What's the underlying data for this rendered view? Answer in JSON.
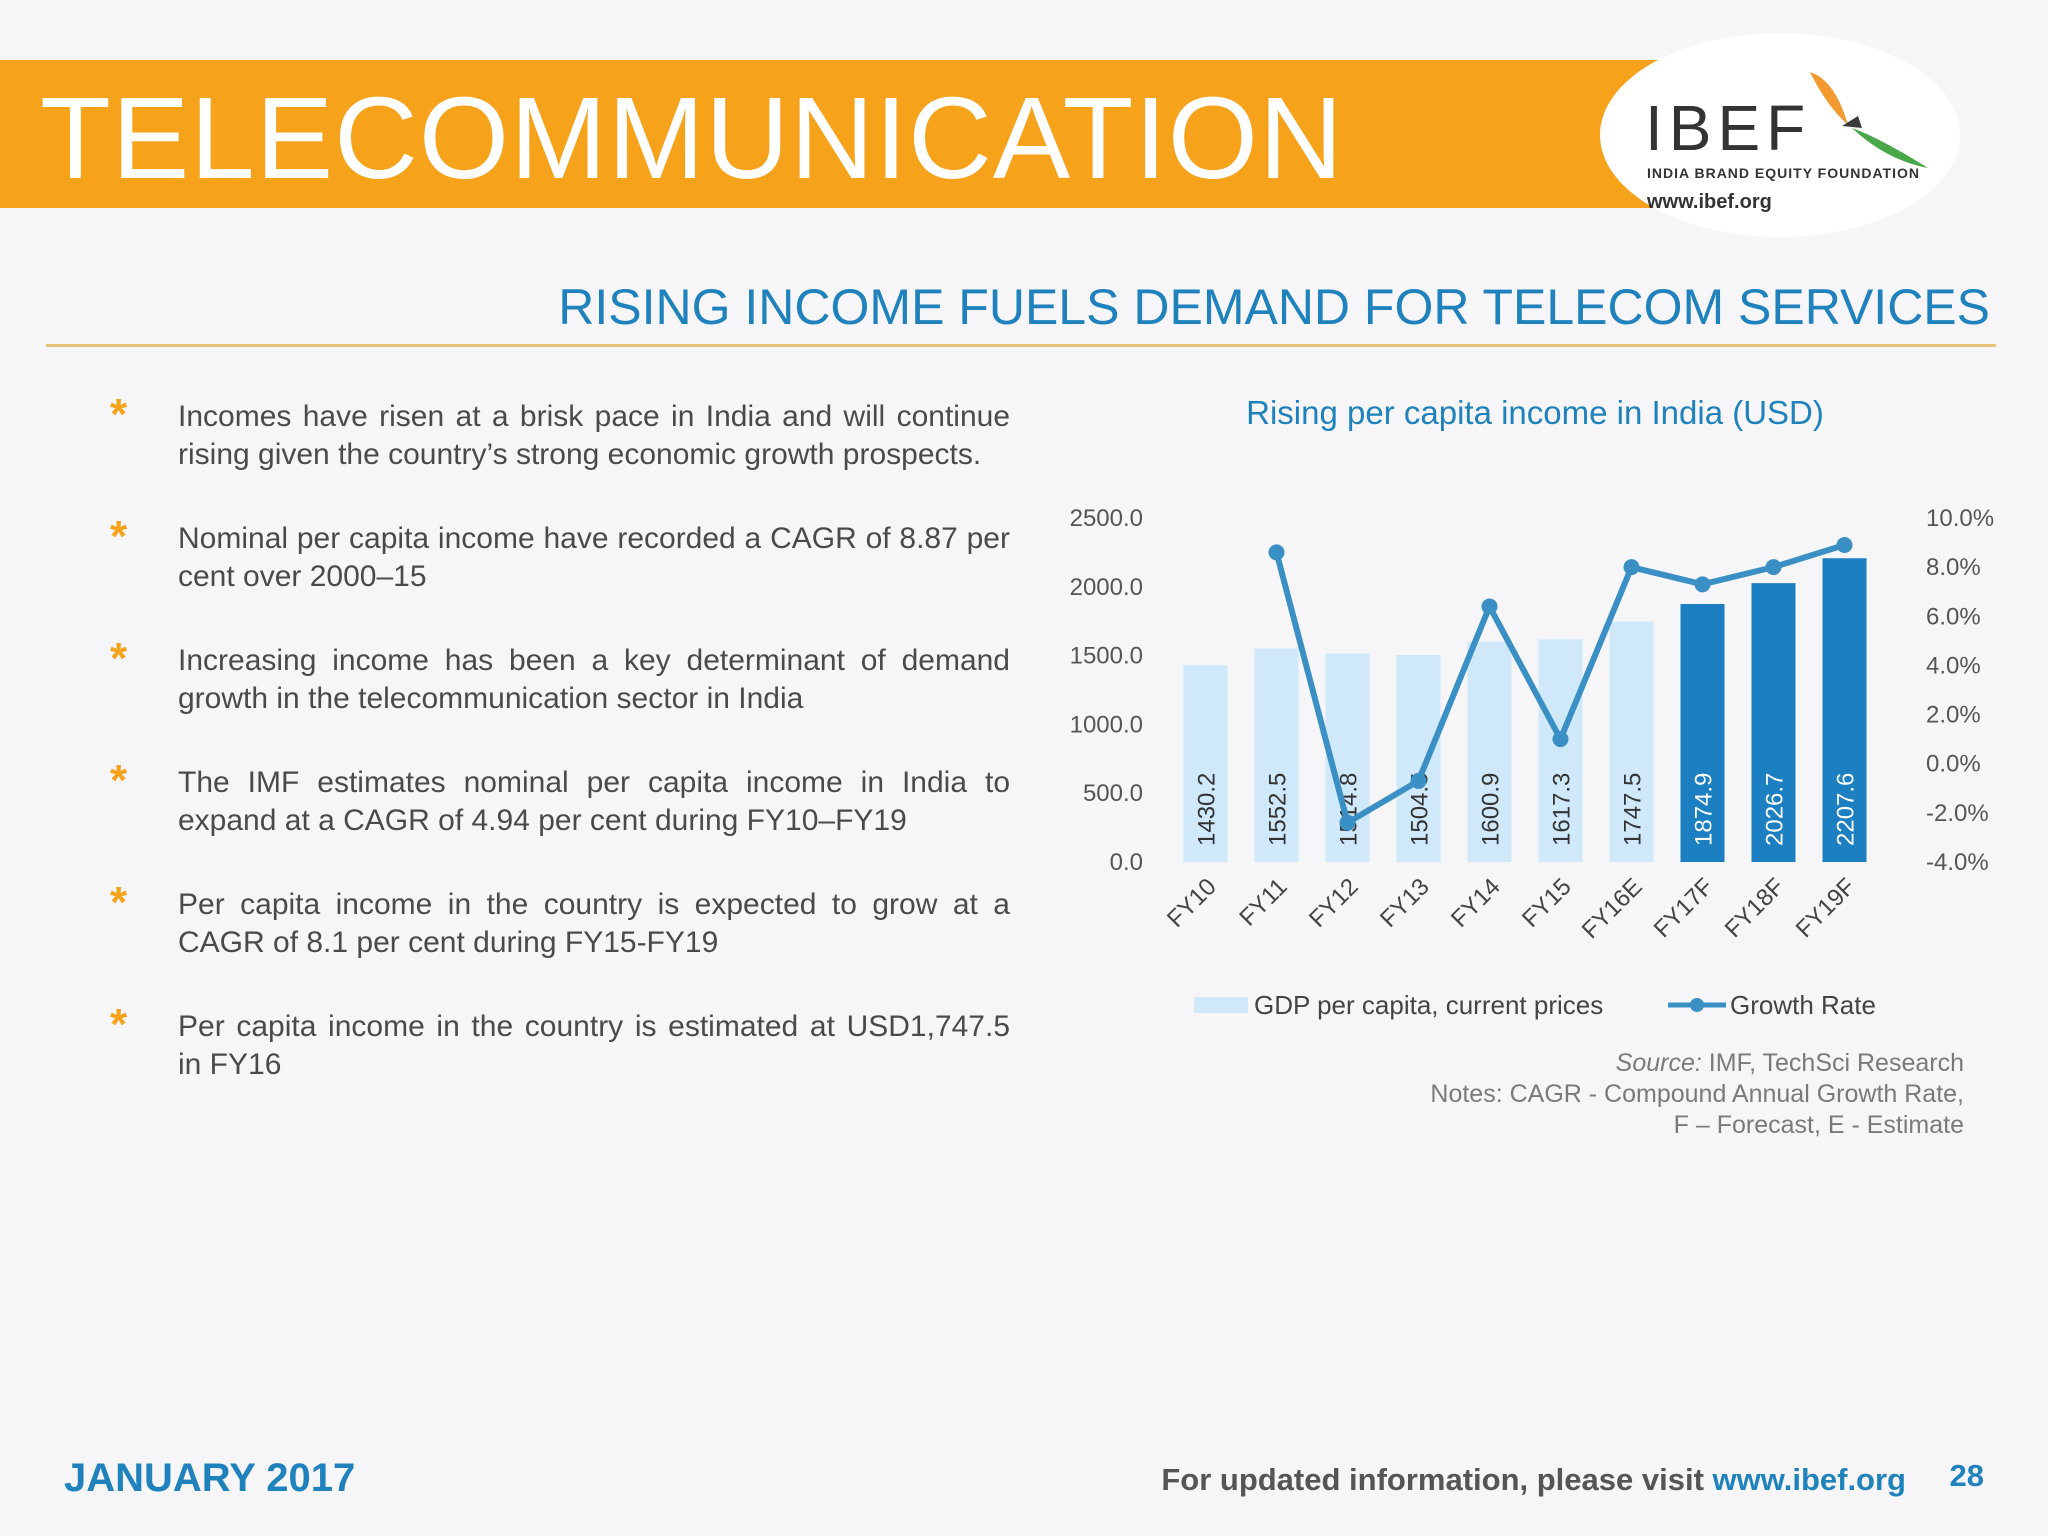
{
  "header": {
    "title": "TELECOMMUNICATION",
    "logo": {
      "name": "IBEF",
      "tagline": "INDIA BRAND EQUITY FOUNDATION",
      "url": "www.ibef.org"
    }
  },
  "slide": {
    "subtitle": "RISING INCOME FUELS DEMAND FOR TELECOM SERVICES",
    "bullets": [
      "Incomes have risen at a brisk pace in India and will continue rising given the country’s strong economic growth prospects.",
      "Nominal per capita income have recorded a CAGR of 8.87 per cent over 2000–15",
      "Increasing income has been a key determinant of demand growth in the telecommunication sector in India",
      "The IMF estimates nominal per capita income in India to expand at a CAGR of 4.94 per cent during FY10–FY19",
      "Per capita income in the country is expected to grow at a CAGR of 8.1 per cent during FY15-FY19",
      "Per capita income in the country is estimated at USD1,747.5 in FY16"
    ],
    "source_label": "Source:",
    "source_text": "IMF, TechSci Research",
    "notes_line1": "Notes: CAGR - Compound Annual Growth Rate,",
    "notes_line2": "F – Forecast, E - Estimate"
  },
  "footer": {
    "date": "JANUARY 2017",
    "visit_text": "For updated information, please visit ",
    "visit_url": "www.ibef.org",
    "page": "28"
  },
  "colors": {
    "orange": "#f6a21b",
    "blue": "#1f82bd",
    "bar_light": "#cfe9fb",
    "bar_dark": "#1b7fc1",
    "line": "#3a8fc4"
  },
  "chart_data": {
    "type": "bar",
    "title": "Rising per capita income in India (USD)",
    "categories": [
      "FY10",
      "FY11",
      "FY12",
      "FY13",
      "FY14",
      "FY15",
      "FY16E",
      "FY17F",
      "FY18F",
      "FY19F"
    ],
    "series": [
      {
        "name": "GDP per capita, current prices",
        "type": "bar",
        "values": [
          1430.2,
          1552.5,
          1514.8,
          1504.5,
          1600.9,
          1617.3,
          1747.5,
          1874.9,
          2026.7,
          2207.6
        ],
        "value_labels": [
          "1430.2",
          "1552.5",
          "1514.8",
          "1504.5",
          "1600.9",
          "1617.3",
          "1747.5",
          "1874.9",
          "2026.7",
          "2207.6"
        ],
        "forecast_from_index": 7
      },
      {
        "name": "Growth Rate",
        "type": "line",
        "axis": "right",
        "values": [
          null,
          8.6,
          -2.4,
          -0.7,
          6.4,
          1.0,
          8.0,
          7.3,
          8.0,
          8.9
        ]
      }
    ],
    "y_left": {
      "min": 0,
      "max": 2500,
      "ticks": [
        "0.0",
        "500.0",
        "1000.0",
        "1500.0",
        "2000.0",
        "2500.0"
      ]
    },
    "y_right": {
      "min": -4,
      "max": 10,
      "ticks": [
        "-4.0%",
        "-2.0%",
        "0.0%",
        "2.0%",
        "4.0%",
        "6.0%",
        "8.0%",
        "10.0%"
      ]
    },
    "legend": "bottom",
    "grid": false
  }
}
